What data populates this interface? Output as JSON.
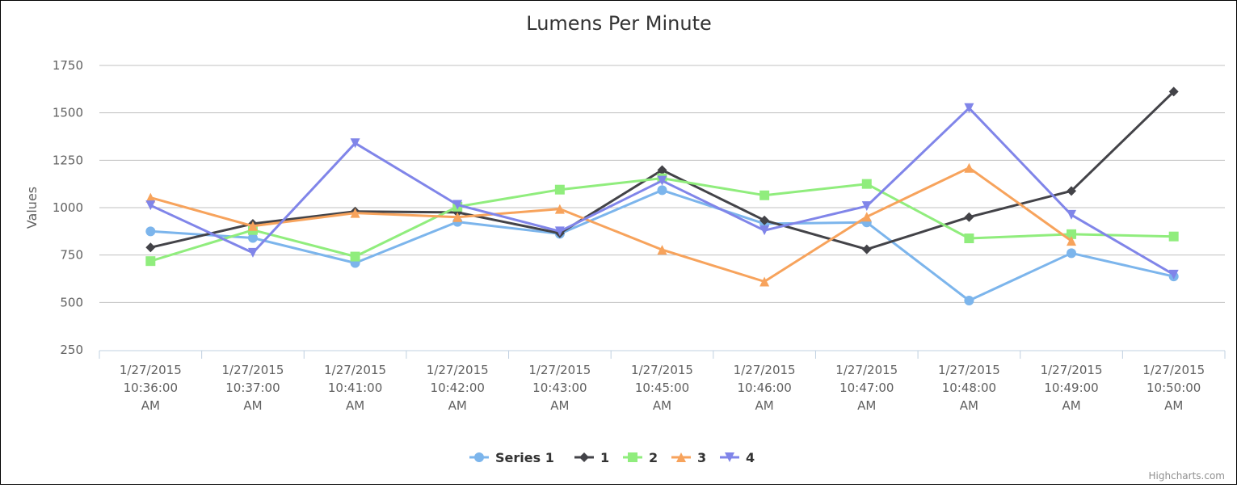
{
  "chart_data": {
    "type": "line",
    "title": "Lumens Per Minute",
    "ylabel": "Values",
    "ylim": [
      250,
      1750
    ],
    "yticks": [
      250,
      500,
      750,
      1000,
      1250,
      1500,
      1750
    ],
    "grid": true,
    "legend_position": "bottom-center",
    "categories": [
      [
        "1/27/2015",
        "10:36:00",
        "AM"
      ],
      [
        "1/27/2015",
        "10:37:00",
        "AM"
      ],
      [
        "1/27/2015",
        "10:41:00",
        "AM"
      ],
      [
        "1/27/2015",
        "10:42:00",
        "AM"
      ],
      [
        "1/27/2015",
        "10:43:00",
        "AM"
      ],
      [
        "1/27/2015",
        "10:45:00",
        "AM"
      ],
      [
        "1/27/2015",
        "10:46:00",
        "AM"
      ],
      [
        "1/27/2015",
        "10:47:00",
        "AM"
      ],
      [
        "1/27/2015",
        "10:48:00",
        "AM"
      ],
      [
        "1/27/2015",
        "10:49:00",
        "AM"
      ],
      [
        "1/27/2015",
        "10:50:00",
        "AM"
      ]
    ],
    "series": [
      {
        "name": "Series 1",
        "color": "#7cb5ec",
        "marker": "circle",
        "values": [
          875,
          840,
          708,
          925,
          862,
          1092,
          915,
          922,
          510,
          760,
          637
        ]
      },
      {
        "name": "1",
        "color": "#434348",
        "marker": "diamond",
        "values": [
          790,
          915,
          980,
          975,
          865,
          1198,
          933,
          780,
          950,
          1088,
          1612
        ]
      },
      {
        "name": "2",
        "color": "#90ed7d",
        "marker": "square",
        "values": [
          718,
          882,
          742,
          1005,
          1095,
          1155,
          1065,
          1125,
          838,
          860,
          848
        ]
      },
      {
        "name": "3",
        "color": "#f7a35c",
        "marker": "triangle",
        "values": [
          1053,
          903,
          972,
          950,
          993,
          778,
          610,
          952,
          1210,
          825,
          null
        ]
      },
      {
        "name": "4",
        "color": "#8085e9",
        "marker": "triangle-down",
        "values": [
          1012,
          762,
          1340,
          1015,
          875,
          1142,
          880,
          1008,
          1525,
          962,
          647
        ]
      }
    ]
  },
  "credits": "Highcharts.com"
}
